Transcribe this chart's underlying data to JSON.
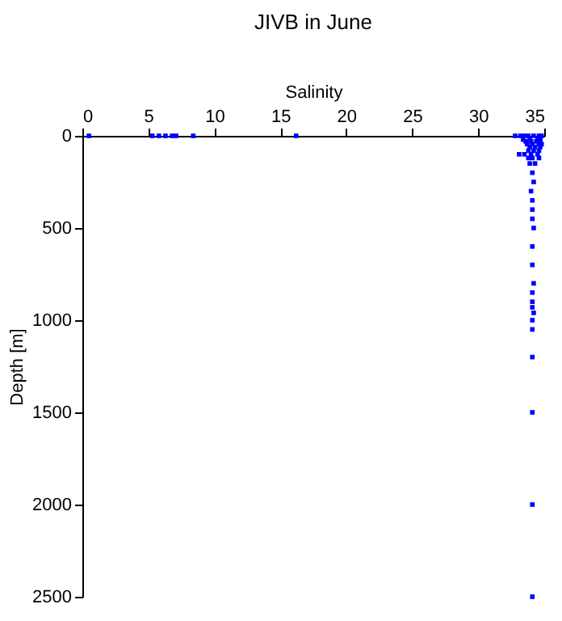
{
  "chart_data": {
    "type": "scatter",
    "title": "JIVB in June",
    "xlabel": "Salinity",
    "ylabel": "Depth [m]",
    "xlim": [
      0,
      35
    ],
    "xticks": [
      0,
      5,
      10,
      15,
      20,
      25,
      30,
      35
    ],
    "ylim": [
      2500,
      0
    ],
    "yticks": [
      0,
      500,
      1000,
      1500,
      2000,
      2500
    ],
    "grid": false,
    "marker": "square",
    "series": [
      {
        "color": "#0000ff",
        "x": [
          0.5,
          5.3,
          5.8,
          6.3,
          6.8,
          7.1,
          8.4,
          16.2,
          32.8,
          33.2,
          33.5,
          33.8,
          34.2,
          34.6,
          34.8,
          33.4,
          33.9,
          34.5,
          34.7,
          33.6,
          34.0,
          34.4,
          34.7,
          33.7,
          34.1,
          34.6,
          34.8,
          33.9,
          34.3,
          34.7,
          33.8,
          34.2,
          34.6,
          33.1,
          33.5,
          34.0,
          34.5,
          33.8,
          34.1,
          34.6,
          33.9,
          34.3,
          34.1,
          34.2,
          34.0,
          34.1,
          34.2,
          34.1,
          34.1,
          34.2,
          34.1,
          34.1,
          34.1,
          34.2,
          34.1,
          34.1,
          34.1,
          34.1,
          34.1,
          34.1,
          34.1,
          34.1
        ],
        "values": [
          0,
          0,
          0,
          0,
          0,
          0,
          0,
          0,
          0,
          0,
          0,
          0,
          0,
          0,
          0,
          20,
          20,
          20,
          20,
          30,
          30,
          30,
          30,
          45,
          45,
          45,
          45,
          60,
          60,
          60,
          80,
          80,
          80,
          100,
          100,
          100,
          100,
          120,
          120,
          120,
          150,
          150,
          200,
          250,
          300,
          400,
          500,
          600,
          700,
          800,
          850,
          900,
          930,
          960,
          1000,
          1050,
          1200,
          1500,
          2000,
          2500,
          350,
          450
        ]
      }
    ]
  }
}
